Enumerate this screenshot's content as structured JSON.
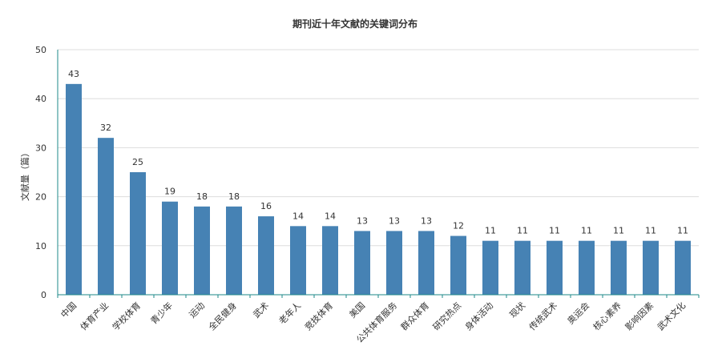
{
  "chart_data": {
    "type": "bar",
    "title": "期刊近十年文献的关键词分布",
    "xlabel": "",
    "ylabel": "文献量（篇）",
    "ylim": [
      0,
      50
    ],
    "yticks": [
      0,
      10,
      20,
      30,
      40,
      50
    ],
    "grid": true,
    "categories": [
      "中国",
      "体育产业",
      "学校体育",
      "青少年",
      "运动",
      "全民健身",
      "武术",
      "老年人",
      "竞技体育",
      "美国",
      "公共体育服务",
      "群众体育",
      "研究热点",
      "身体活动",
      "现状",
      "传统武术",
      "奥运会",
      "核心素养",
      "影响因素",
      "武术文化"
    ],
    "values": [
      43,
      32,
      25,
      19,
      18,
      18,
      16,
      14,
      14,
      13,
      13,
      13,
      12,
      11,
      11,
      11,
      11,
      11,
      11,
      11
    ],
    "colors": {
      "bar": "#4682b4",
      "grid": "#dddddd",
      "axis": "#1e8a8a",
      "text": "#333333"
    }
  }
}
